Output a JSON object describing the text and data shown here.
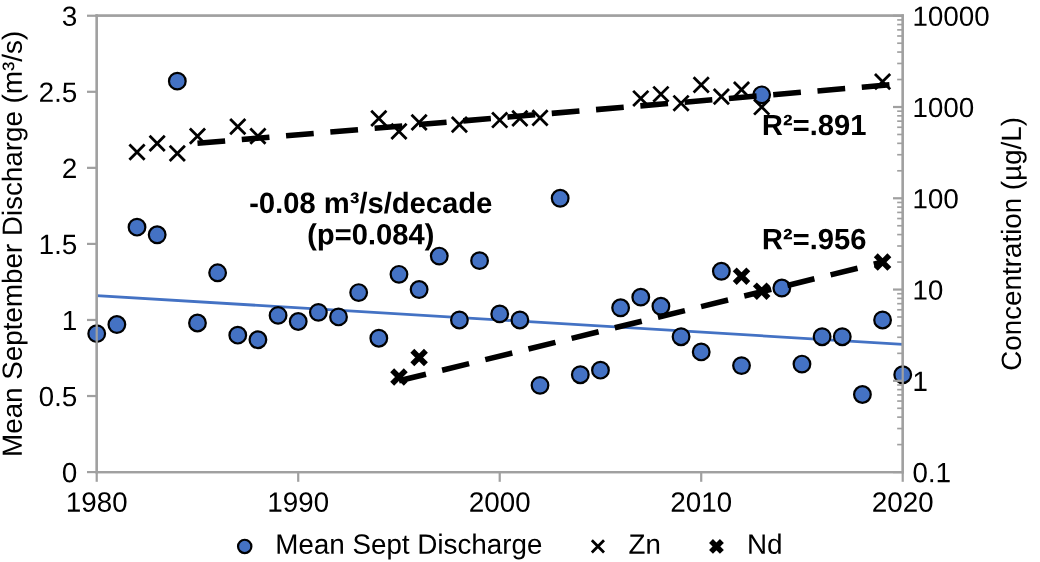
{
  "chart_data": {
    "type": "scatter",
    "xlabel": null,
    "ylabel": "Mean September Discharge (m³/s)",
    "y2label": "Concentration (µg/L)",
    "xlim": [
      1980,
      2020
    ],
    "xticks": [
      1980,
      1990,
      2000,
      2010,
      2020
    ],
    "ylim": [
      0,
      3
    ],
    "yticks": [
      0,
      0.5,
      1,
      1.5,
      2,
      2.5,
      3
    ],
    "y2lim": [
      0.1,
      10000
    ],
    "y2ticks": [
      0.1,
      1,
      10,
      100,
      1000,
      10000
    ],
    "log": "y2",
    "grid": false,
    "legend": "bottom",
    "annotations": [
      "-0.08 m³/s/decade\n(p=0.084)",
      "R²=.891",
      "R²=.956"
    ],
    "series": [
      {
        "name": "Mean Sept Discharge",
        "marker": "circle",
        "color": "#4472c4",
        "x": [
          1980,
          1981,
          1982,
          1983,
          1984,
          1985,
          1986,
          1987,
          1988,
          1989,
          1990,
          1991,
          1992,
          1993,
          1994,
          1995,
          1996,
          1997,
          1998,
          1999,
          2000,
          2001,
          2002,
          2003,
          2004,
          2005,
          2006,
          2007,
          2008,
          2009,
          2010,
          2011,
          2012,
          2013,
          2014,
          2015,
          2016,
          2017,
          2018,
          2019,
          2020
        ],
        "values": [
          0.91,
          0.97,
          1.61,
          1.56,
          2.57,
          0.98,
          1.31,
          0.9,
          0.87,
          1.03,
          0.99,
          1.05,
          1.02,
          1.18,
          0.88,
          1.3,
          1.2,
          1.42,
          1.0,
          1.39,
          1.04,
          1.0,
          0.57,
          1.8,
          0.64,
          0.67,
          1.08,
          1.15,
          1.09,
          0.89,
          0.79,
          1.32,
          0.7,
          2.48,
          1.21,
          0.71,
          0.89,
          0.89,
          0.51,
          1.0,
          0.64
        ]
      },
      {
        "type": "line",
        "line_style": "solid",
        "color": "#4472c4",
        "x": [
          1980,
          2020
        ],
        "values": [
          1.16,
          0.84
        ]
      },
      {
        "name": "Zn",
        "marker": "cross",
        "axis": "y2",
        "color": "#000000",
        "x": [
          1982,
          1983,
          1984,
          1985,
          1987,
          1988,
          1994,
          1995,
          1996,
          1998,
          2000,
          2001,
          2002,
          2007,
          2008,
          2009,
          2010,
          2011,
          2012,
          2013,
          2019
        ],
        "values": [
          320,
          400,
          310,
          480,
          610,
          480,
          750,
          540,
          680,
          640,
          720,
          750,
          760,
          1240,
          1380,
          1100,
          1750,
          1300,
          1550,
          1000,
          1900
        ]
      },
      {
        "type": "line",
        "line_style": "dashed",
        "axis": "y2",
        "color": "#000000",
        "x": [
          1985,
          2020
        ],
        "values": [
          400,
          1800
        ]
      },
      {
        "name": "Nd",
        "marker": "cross",
        "axis": "y2",
        "color": "#000000",
        "x": [
          1995,
          1996,
          2012,
          2013,
          2019
        ],
        "values": [
          1.1,
          1.8,
          14,
          9.6,
          20
        ]
      },
      {
        "type": "line",
        "line_style": "dashed",
        "axis": "y2",
        "color": "#000000",
        "x": [
          1995,
          2019
        ],
        "values": [
          1,
          20
        ]
      }
    ]
  }
}
